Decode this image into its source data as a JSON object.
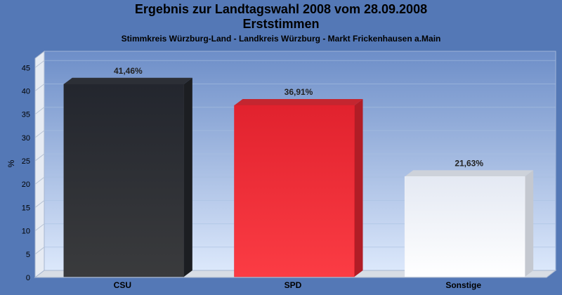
{
  "chart_data": {
    "type": "bar",
    "title": "Ergebnis zur Landtagswahl 2008 vom 28.09.2008",
    "subtitle": "Erststimmen",
    "subsubtitle": "Stimmkreis Würzburg-Land - Landkreis Würzburg - Markt Frickenhausen a.Main",
    "xlabel": "",
    "ylabel": "%",
    "ylim": [
      0,
      47
    ],
    "yticks": [
      0,
      5,
      10,
      15,
      20,
      25,
      30,
      35,
      40,
      45
    ],
    "categories": [
      "CSU",
      "SPD",
      "Sonstige"
    ],
    "values": [
      41.46,
      36.91,
      21.63
    ],
    "value_labels": [
      "41,46%",
      "36,91%",
      "21,63%"
    ],
    "colors": [
      "#2a2d33",
      "#e8202c",
      "#f2f4f8"
    ],
    "grid": true
  }
}
